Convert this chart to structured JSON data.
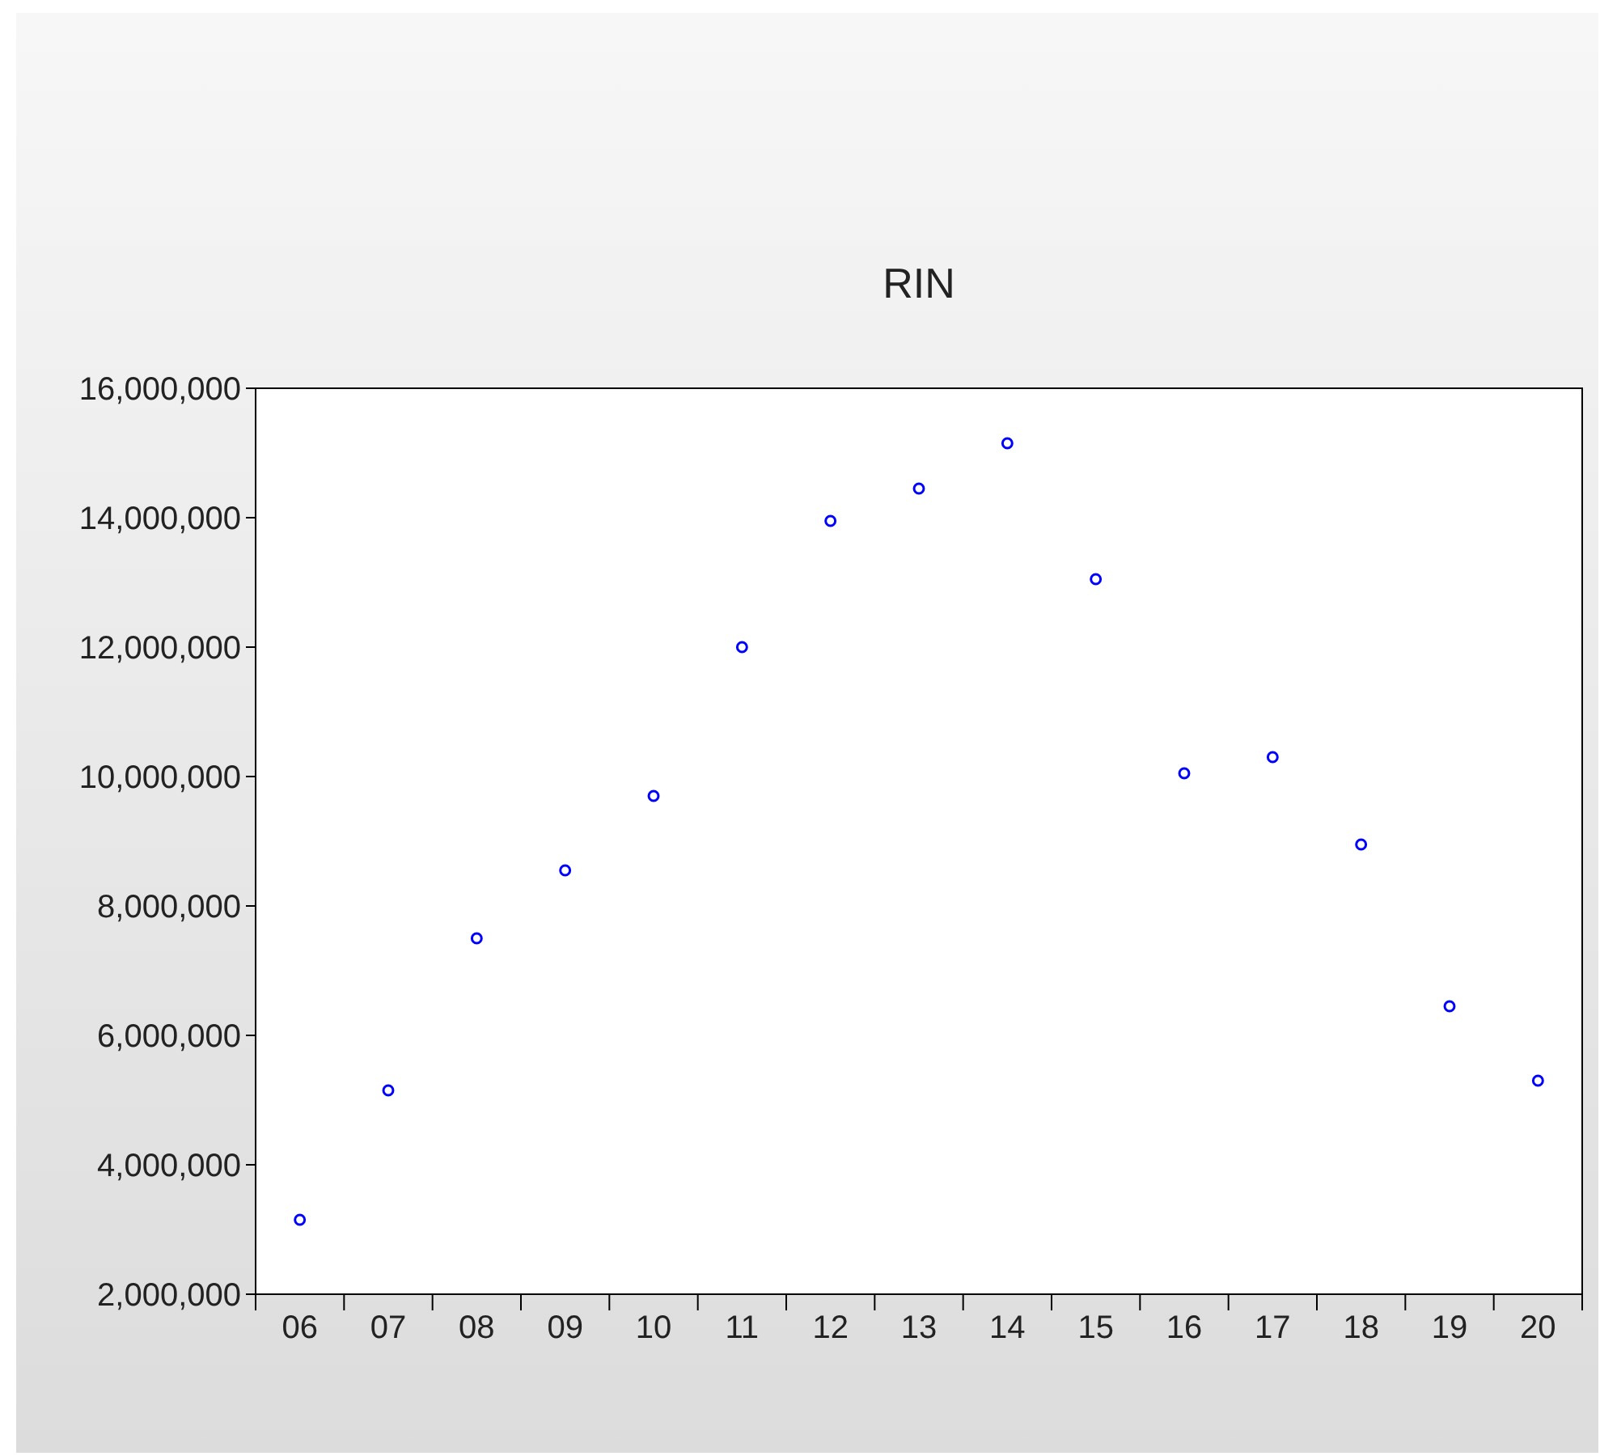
{
  "chart_data": {
    "type": "scatter",
    "title": "RIN",
    "categories": [
      "06",
      "07",
      "08",
      "09",
      "10",
      "11",
      "12",
      "13",
      "14",
      "15",
      "16",
      "17",
      "18",
      "19",
      "20"
    ],
    "series": [
      {
        "color": "#0000ff",
        "values": [
          3150000,
          5150000,
          7500000,
          8550000,
          9700000,
          12000000,
          13950000,
          14450000,
          15150000,
          13050000,
          10050000,
          10300000,
          8950000,
          6450000,
          5300000
        ]
      }
    ],
    "ylim": [
      2000000,
      16000000
    ],
    "yticks": [
      {
        "value": 2000000,
        "label": "2,000,000"
      },
      {
        "value": 4000000,
        "label": "4,000,000"
      },
      {
        "value": 6000000,
        "label": "6,000,000"
      },
      {
        "value": 8000000,
        "label": "8,000,000"
      },
      {
        "value": 10000000,
        "label": "10,000,000"
      },
      {
        "value": 12000000,
        "label": "12,000,000"
      },
      {
        "value": 14000000,
        "label": "14,000,000"
      },
      {
        "value": 16000000,
        "label": "16,000,000"
      }
    ],
    "grid": false,
    "marker": "circle"
  }
}
